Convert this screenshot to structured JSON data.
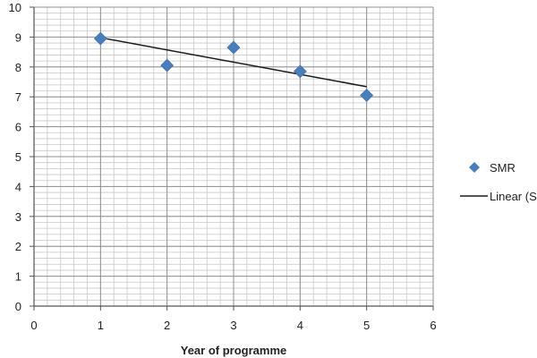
{
  "chart_data": {
    "type": "scatter",
    "title": "",
    "xlabel": "Year  of programme",
    "ylabel": "",
    "xlim": [
      0,
      6
    ],
    "ylim": [
      0,
      10
    ],
    "x_ticks": [
      0,
      1,
      2,
      3,
      4,
      5,
      6
    ],
    "y_ticks": [
      0,
      1,
      2,
      3,
      4,
      5,
      6,
      7,
      8,
      9,
      10
    ],
    "grid": true,
    "minor_grid": true,
    "legend_position": "right",
    "series": [
      {
        "name": "SMR",
        "kind": "scatter",
        "marker": "diamond",
        "color": "#4a7ebb",
        "x": [
          1,
          2,
          3,
          4,
          5
        ],
        "y": [
          8.95,
          8.05,
          8.65,
          7.85,
          7.05
        ]
      },
      {
        "name": "Linear (S",
        "kind": "trendline",
        "color": "#1a1a1a",
        "x": [
          1,
          5
        ],
        "y": [
          8.98,
          7.34
        ]
      }
    ]
  }
}
